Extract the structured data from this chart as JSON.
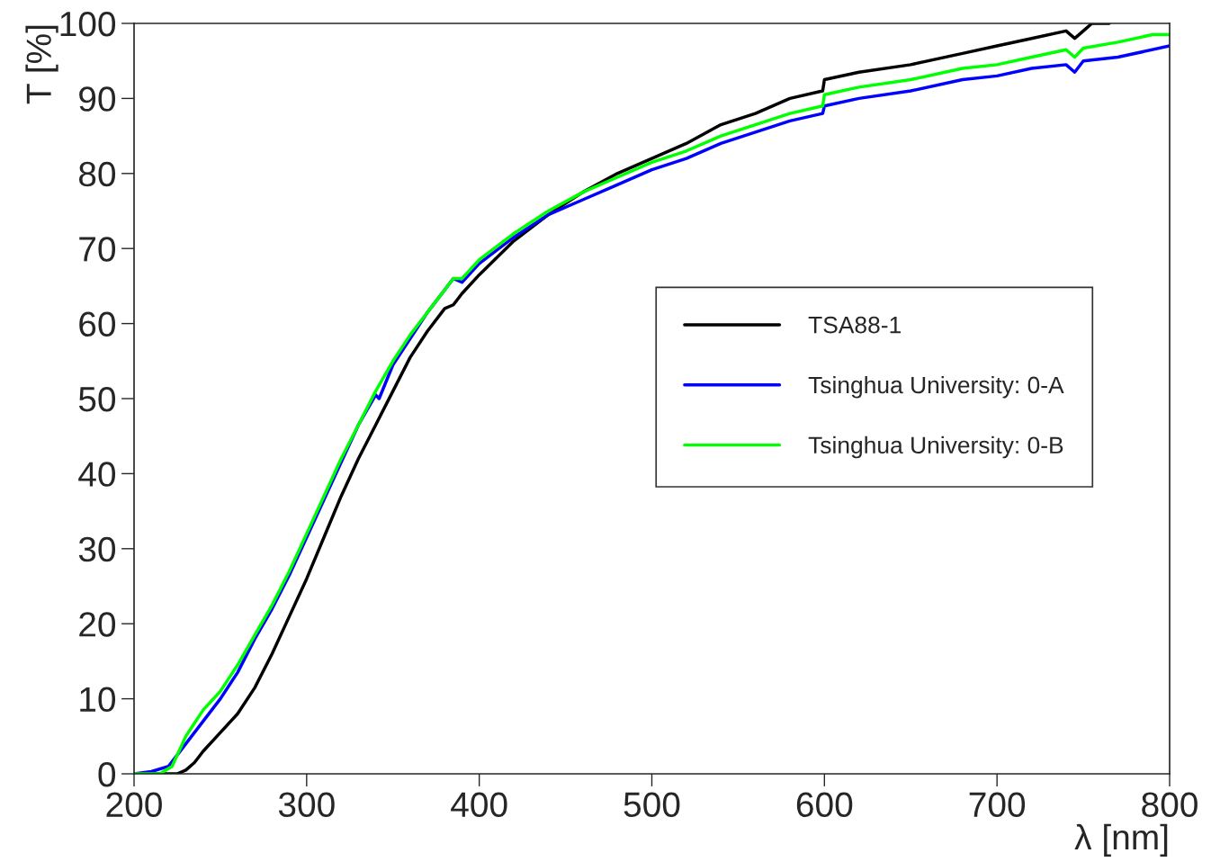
{
  "chart_data": {
    "type": "line",
    "xlabel": "λ [nm]",
    "ylabel": "T [%]",
    "xlim": [
      200,
      800
    ],
    "ylim": [
      0,
      100
    ],
    "xticks": [
      200,
      300,
      400,
      500,
      600,
      700,
      800
    ],
    "yticks": [
      0,
      10,
      20,
      30,
      40,
      50,
      60,
      70,
      80,
      90,
      100
    ],
    "grid": false,
    "legend": "right",
    "line_style": "solid",
    "marker": "none",
    "series": [
      {
        "name": "TSA88-1",
        "color": "#000000",
        "x": [
          200,
          225,
          230,
          235,
          240,
          250,
          260,
          270,
          280,
          290,
          300,
          310,
          320,
          330,
          340,
          350,
          360,
          370,
          380,
          385,
          390,
          400,
          420,
          440,
          460,
          480,
          500,
          520,
          540,
          560,
          580,
          599,
          600,
          620,
          650,
          680,
          700,
          720,
          740,
          745,
          750,
          755,
          765
        ],
        "values": [
          0,
          0,
          0.5,
          1.5,
          3,
          5.5,
          8,
          11.5,
          16,
          21,
          26,
          31.5,
          37,
          42,
          46.5,
          51,
          55.5,
          59,
          62,
          62.5,
          64,
          66.5,
          71,
          74.5,
          77.5,
          80,
          82,
          84,
          86.5,
          88,
          90,
          91,
          92.5,
          93.5,
          94.5,
          96,
          97,
          98,
          99,
          98,
          99,
          100,
          100
        ]
      },
      {
        "name": "Tsinghua University: 0-A",
        "color": "#0000ff",
        "x": [
          200,
          210,
          220,
          230,
          240,
          250,
          260,
          270,
          280,
          290,
          300,
          310,
          320,
          330,
          340,
          342,
          350,
          360,
          370,
          380,
          385,
          390,
          400,
          420,
          440,
          460,
          480,
          500,
          520,
          540,
          560,
          580,
          599,
          600,
          620,
          650,
          680,
          700,
          720,
          740,
          745,
          750,
          770,
          800
        ],
        "values": [
          0,
          0.3,
          1,
          4,
          7,
          10,
          13.5,
          18,
          22,
          26.5,
          31.5,
          36.5,
          41.5,
          46.5,
          50.5,
          50,
          54.5,
          58,
          61.5,
          64.5,
          66,
          65.5,
          68,
          71.5,
          74.5,
          76.5,
          78.5,
          80.5,
          82,
          84,
          85.5,
          87,
          88,
          89,
          90,
          91,
          92.5,
          93,
          94,
          94.5,
          93.5,
          95,
          95.5,
          97
        ]
      },
      {
        "name": "Tsinghua University: 0-B",
        "color": "#00ff00",
        "x": [
          200,
          215,
          222,
          230,
          240,
          250,
          260,
          270,
          280,
          290,
          300,
          310,
          320,
          330,
          340,
          350,
          360,
          370,
          380,
          385,
          390,
          400,
          420,
          440,
          460,
          480,
          500,
          520,
          540,
          560,
          580,
          599,
          600,
          620,
          650,
          680,
          700,
          720,
          740,
          745,
          750,
          770,
          790,
          800
        ],
        "values": [
          0,
          0,
          1,
          5,
          8.5,
          11,
          14.5,
          18.5,
          22.5,
          27,
          32,
          37,
          42,
          46.5,
          51,
          55,
          58.5,
          61.5,
          64.5,
          66,
          66,
          68.5,
          72,
          75,
          77.5,
          79.5,
          81.5,
          83,
          85,
          86.5,
          88,
          89,
          90.5,
          91.5,
          92.5,
          94,
          94.5,
          95.5,
          96.5,
          95.5,
          96.7,
          97.5,
          98.5,
          98.5
        ]
      }
    ]
  }
}
